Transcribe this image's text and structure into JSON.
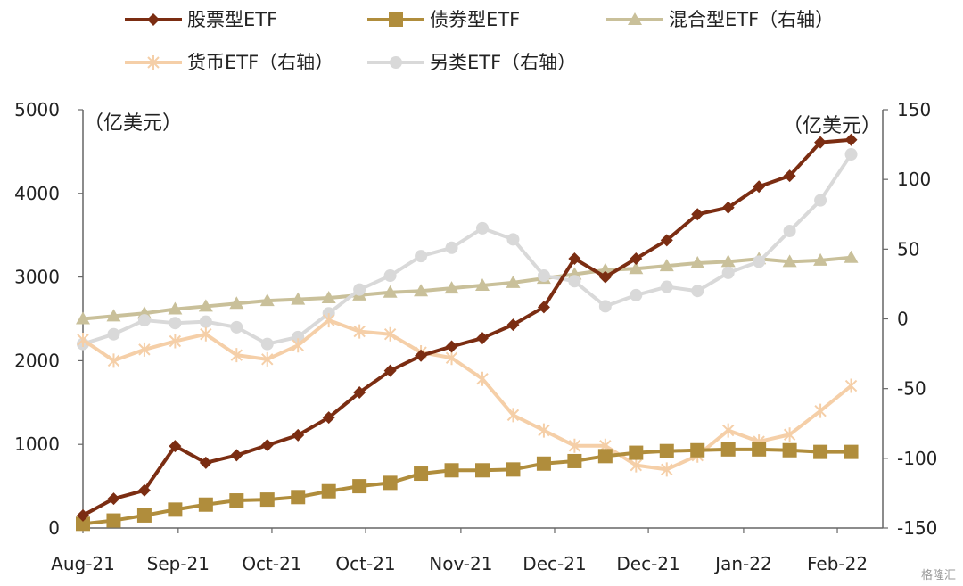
{
  "chart_data": {
    "type": "line",
    "left_unit": "（亿美元）",
    "right_unit": "（亿美元）",
    "x_tick_labels": [
      "Aug-21",
      "Sep-21",
      "Oct-21",
      "Oct-21",
      "Nov-21",
      "Dec-21",
      "Dec-21",
      "Jan-22",
      "Feb-22"
    ],
    "ylim_left": [
      0,
      5000
    ],
    "yticks_left": [
      0,
      1000,
      2000,
      3000,
      4000,
      5000
    ],
    "ylim_right": [
      -150,
      150
    ],
    "yticks_right": [
      -150,
      -100,
      -50,
      0,
      50,
      100,
      150
    ],
    "legend_position": "top",
    "points_count": 27,
    "series": [
      {
        "name": "股票型ETF",
        "axis": "left",
        "color": "#7b2d12",
        "marker": "diamond",
        "values": [
          150,
          350,
          450,
          980,
          780,
          870,
          990,
          1110,
          1320,
          1620,
          1880,
          2060,
          2170,
          2270,
          2430,
          2640,
          3220,
          3000,
          3220,
          3440,
          3750,
          3830,
          4080,
          4210,
          4610,
          4640,
          null
        ]
      },
      {
        "name": "债券型ETF",
        "axis": "left",
        "color": "#b08d3c",
        "marker": "square",
        "values": [
          50,
          90,
          150,
          220,
          280,
          330,
          340,
          370,
          440,
          500,
          540,
          650,
          690,
          690,
          700,
          770,
          800,
          860,
          900,
          920,
          930,
          940,
          940,
          930,
          910,
          910,
          null
        ]
      },
      {
        "name": "混合型ETF（右轴）",
        "axis": "right",
        "color": "#c9c09a",
        "marker": "triangle",
        "values": [
          0,
          2,
          4,
          7,
          9,
          11,
          13,
          14,
          15,
          17,
          19,
          20,
          22,
          24,
          26,
          29,
          32,
          35,
          36,
          38,
          40,
          41,
          43,
          41,
          42,
          44,
          null
        ]
      },
      {
        "name": "货币ETF（右轴）",
        "axis": "right",
        "color": "#f5cfa8",
        "marker": "star",
        "values": [
          -15,
          -30,
          -22,
          -16,
          -11,
          -26,
          -29,
          -19,
          -1,
          -9,
          -11,
          -24,
          -28,
          -43,
          -69,
          -80,
          -91,
          -91,
          -105,
          -108,
          -98,
          -80,
          -88,
          -83,
          -66,
          -48,
          null
        ]
      },
      {
        "name": "另类ETF（右轴）",
        "axis": "right",
        "color": "#d9d9d9",
        "marker": "circle",
        "values": [
          -18,
          -11,
          -1,
          -3,
          -2,
          -6,
          -18,
          -13,
          4,
          21,
          31,
          45,
          51,
          65,
          57,
          31,
          27,
          9,
          17,
          23,
          20,
          33,
          41,
          63,
          85,
          118,
          null
        ]
      }
    ]
  },
  "watermark": "格隆汇"
}
